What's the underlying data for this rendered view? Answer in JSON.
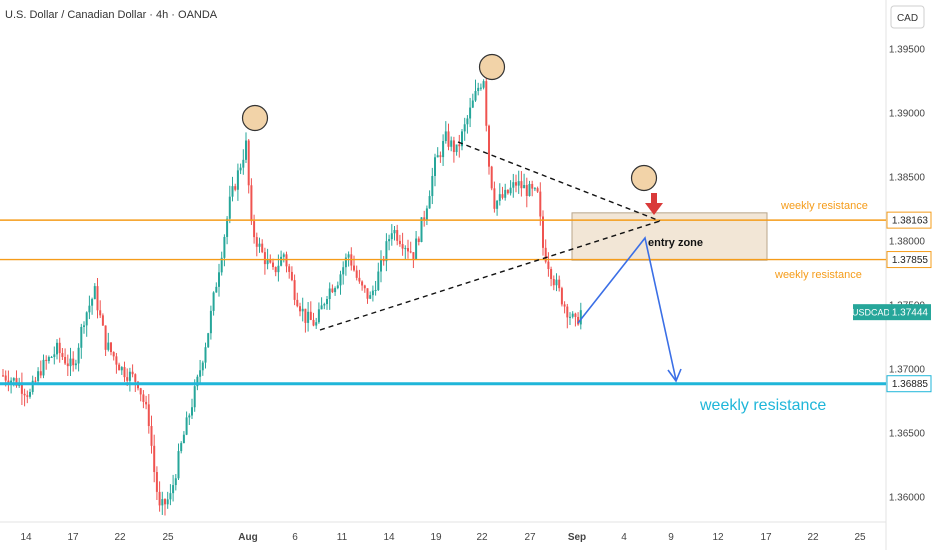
{
  "header": {
    "title": "U.S. Dollar / Canadian Dollar · 4h · OANDA",
    "currency_button": "CAD"
  },
  "chart_data": {
    "type": "candlestick",
    "symbol": "USDCAD",
    "ylim": [
      1.3575,
      1.3985
    ],
    "y_ticks": [
      {
        "value": 1.395,
        "label": "1.39500"
      },
      {
        "value": 1.39,
        "label": "1.39000"
      },
      {
        "value": 1.385,
        "label": "1.38500"
      },
      {
        "value": 1.38,
        "label": "1.38000"
      },
      {
        "value": 1.375,
        "label": "1.37500"
      },
      {
        "value": 1.37,
        "label": "1.37000"
      },
      {
        "value": 1.365,
        "label": "1.36500"
      },
      {
        "value": 1.36,
        "label": "1.36000"
      }
    ],
    "x_ticks": [
      "14",
      "17",
      "22",
      "25",
      "Aug",
      "6",
      "11",
      "14",
      "19",
      "22",
      "27",
      "Sep",
      "4",
      "9",
      "12",
      "17",
      "22",
      "25"
    ],
    "price_path": [
      [
        0,
        1.3695
      ],
      [
        5,
        1.369
      ],
      [
        10,
        1.368
      ],
      [
        14,
        1.37
      ],
      [
        20,
        1.3715
      ],
      [
        26,
        1.37
      ],
      [
        30,
        1.374
      ],
      [
        34,
        1.376
      ],
      [
        38,
        1.372
      ],
      [
        44,
        1.37
      ],
      [
        50,
        1.369
      ],
      [
        54,
        1.366
      ],
      [
        56,
        1.362
      ],
      [
        58,
        1.359
      ],
      [
        62,
        1.36
      ],
      [
        66,
        1.364
      ],
      [
        72,
        1.369
      ],
      [
        76,
        1.373
      ],
      [
        80,
        1.378
      ],
      [
        84,
        1.383
      ],
      [
        88,
        1.386
      ],
      [
        90,
        1.3875
      ],
      [
        92,
        1.381
      ],
      [
        96,
        1.379
      ],
      [
        100,
        1.3775
      ],
      [
        104,
        1.379
      ],
      [
        108,
        1.376
      ],
      [
        112,
        1.374
      ],
      [
        116,
        1.3735
      ],
      [
        120,
        1.376
      ],
      [
        124,
        1.377
      ],
      [
        128,
        1.379
      ],
      [
        132,
        1.3765
      ],
      [
        136,
        1.3755
      ],
      [
        140,
        1.378
      ],
      [
        144,
        1.381
      ],
      [
        148,
        1.38
      ],
      [
        152,
        1.379
      ],
      [
        156,
        1.382
      ],
      [
        160,
        1.386
      ],
      [
        164,
        1.388
      ],
      [
        168,
        1.387
      ],
      [
        172,
        1.3895
      ],
      [
        176,
        1.392
      ],
      [
        178,
        1.3928
      ],
      [
        180,
        1.386
      ],
      [
        182,
        1.383
      ],
      [
        186,
        1.3835
      ],
      [
        190,
        1.3845
      ],
      [
        194,
        1.384
      ],
      [
        198,
        1.3835
      ],
      [
        200,
        1.3795
      ],
      [
        204,
        1.377
      ],
      [
        208,
        1.375
      ],
      [
        212,
        1.3735
      ],
      [
        214,
        1.3745
      ]
    ],
    "levels": [
      {
        "name": "weekly-resistance-upper",
        "value": 1.38163,
        "label": "1.38163",
        "color": "#f59c1a"
      },
      {
        "name": "weekly-resistance-lower",
        "value": 1.37855,
        "label": "1.37855",
        "color": "#f59c1a"
      },
      {
        "name": "weekly-resistance-support",
        "value": 1.36885,
        "label": "1.36885",
        "color": "#1fb6d9"
      }
    ],
    "current_price": {
      "label": "1.37444",
      "symbol_label": "USDCAD",
      "value": 1.37444,
      "color": "#26a69a"
    },
    "annotations": {
      "weekly_resistance_1": "weekly resistance",
      "weekly_resistance_2": "weekly resistance",
      "weekly_resistance_3": "weekly resistance",
      "entry_zone": "entry zone"
    },
    "colors": {
      "up": "#26a69a",
      "down": "#ef5350",
      "orange": "#f59c1a",
      "cyan": "#1fb6d9",
      "arrow_blue": "#3b6fe6",
      "entry_fill": "#f0e2cf",
      "circle_fill": "#f2d3a8",
      "red_arrow": "#d93a3a"
    }
  }
}
